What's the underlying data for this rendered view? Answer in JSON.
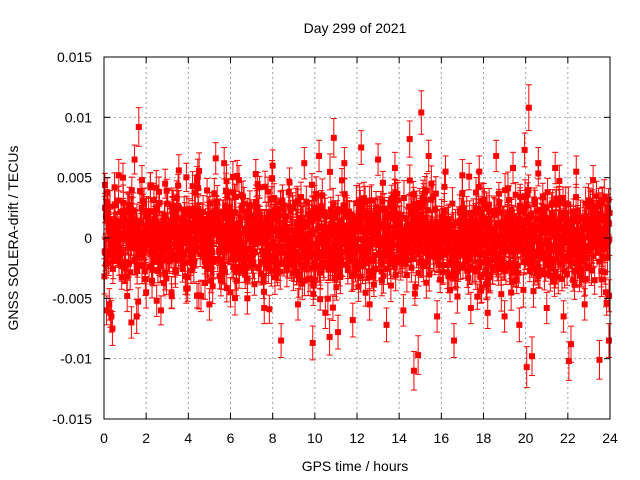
{
  "chart_data": {
    "type": "scatter",
    "title": "Day 299 of 2021",
    "xlabel": "GPS time / hours",
    "ylabel": "GNSS SOLERA-drift / TECUs",
    "xlim": [
      0,
      24
    ],
    "ylim": [
      -0.015,
      0.015
    ],
    "xticks": [
      0,
      2,
      4,
      6,
      8,
      10,
      12,
      14,
      16,
      18,
      20,
      22,
      24
    ],
    "xtick_labels": [
      "0",
      "2",
      "4",
      "6",
      "8",
      "10",
      "12",
      "14",
      "16",
      "18",
      "20",
      "22",
      "24"
    ],
    "yticks": [
      -0.015,
      -0.01,
      -0.005,
      0,
      0.005,
      0.01,
      0.015
    ],
    "ytick_labels": [
      "-0.015",
      "-0.01",
      "-0.005",
      "0",
      "0.005",
      "0.01",
      "0.015"
    ],
    "grid": true,
    "legend": "none",
    "marker_color": "#ff0000",
    "error_bars": true,
    "series": [
      {
        "values_note": "dense noise cloud",
        "points": [
          [
            0.05,
            0.0025,
            0.0012
          ],
          [
            0.1,
            -0.0022,
            0.0011
          ],
          [
            0.15,
            0.0038,
            0.0012
          ],
          [
            0.25,
            -0.0055,
            0.0013
          ],
          [
            0.3,
            -0.0062,
            0.0012
          ],
          [
            0.35,
            -0.0065,
            0.0013
          ],
          [
            0.4,
            -0.0075,
            0.0014
          ],
          [
            0.5,
            0.0042,
            0.0012
          ],
          [
            0.7,
            0.0052,
            0.0013
          ],
          [
            0.9,
            0.005,
            0.0012
          ],
          [
            1.1,
            -0.0048,
            0.0013
          ],
          [
            1.3,
            -0.007,
            0.0013
          ],
          [
            1.45,
            0.0065,
            0.0012
          ],
          [
            1.55,
            -0.0065,
            0.0014
          ],
          [
            1.65,
            0.0092,
            0.0016
          ],
          [
            1.8,
            0.0048,
            0.0012
          ],
          [
            2.0,
            -0.0045,
            0.0013
          ],
          [
            2.2,
            0.0042,
            0.0012
          ],
          [
            2.5,
            -0.0052,
            0.0013
          ],
          [
            2.7,
            -0.006,
            0.0012
          ],
          [
            2.9,
            0.0045,
            0.0012
          ],
          [
            3.2,
            -0.0045,
            0.0013
          ],
          [
            3.55,
            0.0056,
            0.0013
          ],
          [
            3.9,
            -0.0042,
            0.0012
          ],
          [
            4.2,
            0.0043,
            0.0012
          ],
          [
            4.6,
            -0.0048,
            0.0013
          ],
          [
            5.0,
            -0.0055,
            0.0013
          ],
          [
            5.3,
            0.0066,
            0.0013
          ],
          [
            5.7,
            0.0062,
            0.0013
          ],
          [
            6.0,
            -0.0045,
            0.0012
          ],
          [
            6.4,
            0.0048,
            0.0012
          ],
          [
            6.8,
            -0.005,
            0.0013
          ],
          [
            7.2,
            0.0053,
            0.0012
          ],
          [
            7.6,
            -0.0058,
            0.0013
          ],
          [
            8.0,
            0.006,
            0.0013
          ],
          [
            8.4,
            -0.0085,
            0.0014
          ],
          [
            8.8,
            0.0046,
            0.0012
          ],
          [
            9.2,
            -0.0055,
            0.0013
          ],
          [
            9.5,
            0.0062,
            0.0013
          ],
          [
            9.9,
            -0.0087,
            0.0014
          ],
          [
            10.2,
            0.0068,
            0.0013
          ],
          [
            10.5,
            -0.0062,
            0.0013
          ],
          [
            10.7,
            -0.0082,
            0.0015
          ],
          [
            10.9,
            0.0083,
            0.0016
          ],
          [
            11.1,
            -0.0078,
            0.0014
          ],
          [
            11.4,
            0.0062,
            0.0013
          ],
          [
            11.8,
            -0.0068,
            0.0014
          ],
          [
            12.2,
            0.0075,
            0.0014
          ],
          [
            12.6,
            -0.0055,
            0.0013
          ],
          [
            13.0,
            0.0065,
            0.0013
          ],
          [
            13.4,
            -0.0072,
            0.0014
          ],
          [
            13.8,
            0.0058,
            0.0013
          ],
          [
            14.2,
            -0.006,
            0.0013
          ],
          [
            14.5,
            0.0082,
            0.0015
          ],
          [
            14.7,
            -0.011,
            0.0016
          ],
          [
            14.9,
            -0.0097,
            0.0016
          ],
          [
            15.05,
            0.0104,
            0.0018
          ],
          [
            15.4,
            0.0068,
            0.0013
          ],
          [
            15.8,
            -0.0065,
            0.0013
          ],
          [
            16.2,
            0.0055,
            0.0013
          ],
          [
            16.6,
            -0.0085,
            0.0014
          ],
          [
            17.0,
            0.0052,
            0.0013
          ],
          [
            17.4,
            -0.0058,
            0.0013
          ],
          [
            17.8,
            0.0055,
            0.0013
          ],
          [
            18.2,
            -0.0062,
            0.0013
          ],
          [
            18.6,
            0.0068,
            0.0013
          ],
          [
            19.0,
            -0.0065,
            0.0013
          ],
          [
            19.4,
            0.0058,
            0.0013
          ],
          [
            19.7,
            -0.0072,
            0.0014
          ],
          [
            19.95,
            0.0073,
            0.0014
          ],
          [
            20.05,
            -0.0107,
            0.0017
          ],
          [
            20.15,
            0.0108,
            0.0019
          ],
          [
            20.3,
            -0.0098,
            0.0016
          ],
          [
            20.6,
            0.0062,
            0.0013
          ],
          [
            21.0,
            -0.0058,
            0.0013
          ],
          [
            21.4,
            0.0058,
            0.0013
          ],
          [
            21.8,
            -0.0065,
            0.0013
          ],
          [
            22.05,
            -0.0102,
            0.0016
          ],
          [
            22.15,
            -0.0088,
            0.0015
          ],
          [
            22.4,
            0.0055,
            0.0013
          ],
          [
            22.8,
            -0.0055,
            0.0013
          ],
          [
            23.2,
            0.0048,
            0.0012
          ],
          [
            23.5,
            -0.0101,
            0.0016
          ],
          [
            23.8,
            -0.0045,
            0.0012
          ],
          [
            23.95,
            -0.0085,
            0.0014
          ]
        ]
      }
    ]
  }
}
